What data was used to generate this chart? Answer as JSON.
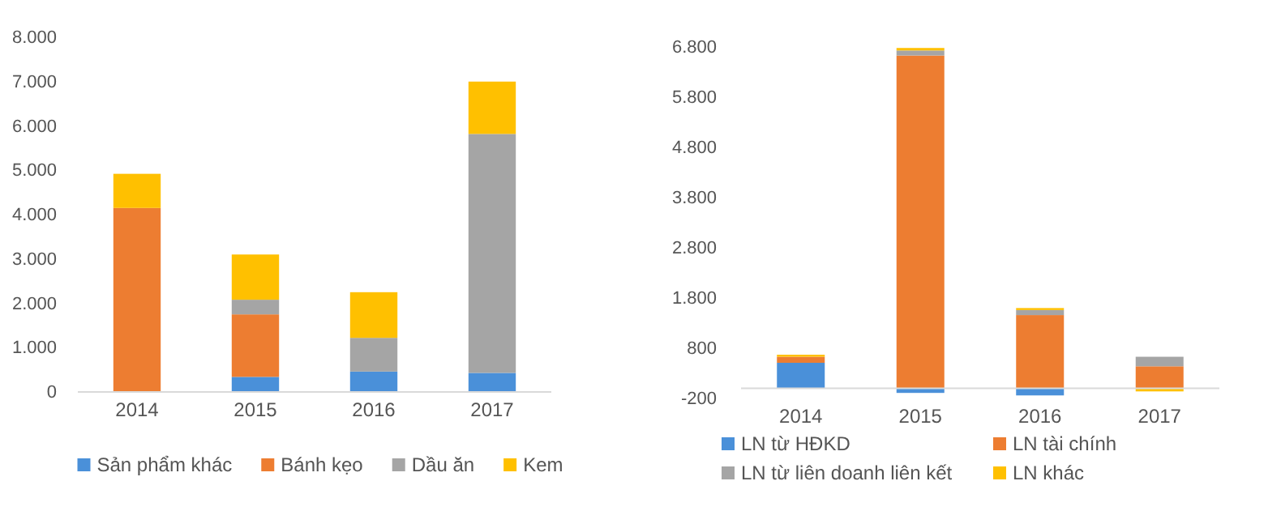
{
  "chart_data": [
    {
      "type": "bar",
      "stacked": true,
      "categories": [
        "2014",
        "2015",
        "2016",
        "2017"
      ],
      "series": [
        {
          "name": "Sản phẩm khác",
          "color": "#4a90d9",
          "values": [
            0,
            340,
            460,
            430
          ]
        },
        {
          "name": "Bánh kẹo",
          "color": "#ed7d31",
          "values": [
            4150,
            1410,
            0,
            0
          ]
        },
        {
          "name": "Dầu ăn",
          "color": "#a5a5a5",
          "values": [
            0,
            330,
            760,
            5390
          ]
        },
        {
          "name": "Kem",
          "color": "#ffc000",
          "values": [
            770,
            1020,
            1030,
            1180
          ]
        }
      ],
      "ylim": [
        0,
        8000
      ],
      "yticks": [
        0,
        {
          "value": 1000,
          "label": "1.000"
        },
        {
          "value": 2000,
          "label": "2.000"
        },
        {
          "value": 3000,
          "label": "3.000"
        },
        {
          "value": 4000,
          "label": "4.000"
        },
        {
          "value": 5000,
          "label": "5.000"
        },
        {
          "value": 6000,
          "label": "6.000"
        },
        {
          "value": 7000,
          "label": "7.000"
        },
        {
          "value": 8000,
          "label": "8.000"
        }
      ],
      "grid": false,
      "legend": "bottom"
    },
    {
      "type": "bar",
      "stacked": true,
      "categories": [
        "2014",
        "2015",
        "2016",
        "2017"
      ],
      "series": [
        {
          "name": "LN từ HĐKD",
          "color": "#4a90d9",
          "values": [
            510,
            -90,
            -140,
            null
          ]
        },
        {
          "name": "LN tài chính",
          "color": "#ed7d31",
          "values": [
            120,
            6630,
            1460,
            440
          ]
        },
        {
          "name": "LN từ liên doanh liên kết",
          "color": "#a5a5a5",
          "values": [
            0,
            100,
            100,
            190
          ]
        },
        {
          "name": "LN khác",
          "color": "#ffc000",
          "values": [
            40,
            50,
            40,
            -60
          ]
        }
      ],
      "ylim": [
        -200,
        6800
      ],
      "yticks": [
        -200,
        800,
        {
          "value": 1800,
          "label": "1.800"
        },
        {
          "value": 2800,
          "label": "2.800"
        },
        {
          "value": 3800,
          "label": "3.800"
        },
        {
          "value": 4800,
          "label": "4.800"
        },
        {
          "value": 5800,
          "label": "5.800"
        },
        {
          "value": 6800,
          "label": "6.800"
        }
      ],
      "grid": false,
      "legend": "bottom"
    }
  ]
}
